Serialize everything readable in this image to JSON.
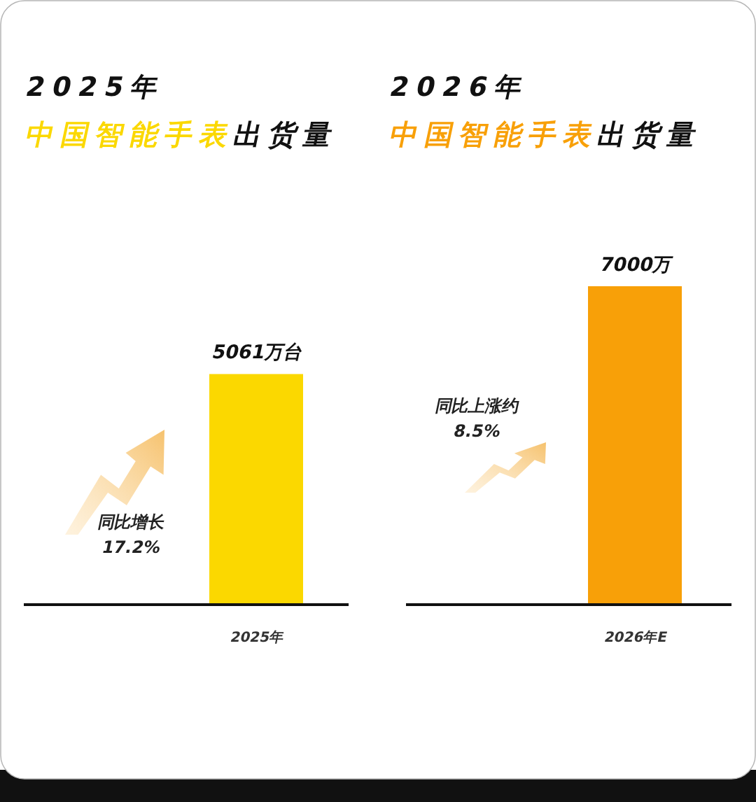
{
  "chart_data": {
    "type": "bar",
    "categories": [
      "2025年",
      "2026年E"
    ],
    "values": [
      5061,
      7000
    ],
    "colors": [
      "#fbd800",
      "#f8a008"
    ],
    "value_labels": [
      "5061万台",
      "7000万"
    ],
    "annotations": [
      "2025年",
      "中国智能手表出货量",
      "2026年",
      "中国智能手表出货量",
      "同比增长",
      "17.2%",
      "同比上涨约",
      "8.5%"
    ]
  }
}
